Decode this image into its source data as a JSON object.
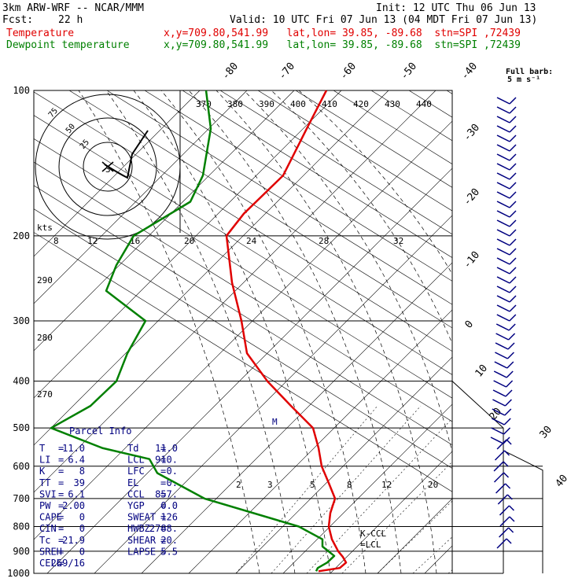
{
  "header": {
    "model": "3km ARW-WRF -- NCAR/MMM",
    "init": "Init: 12 UTC Thu 06 Jun 13",
    "fcst_label": "Fcst:",
    "fcst_value": "22 h",
    "valid": "Valid: 10 UTC Fri 07 Jun 13 (04 MDT Fri 07 Jun 13)",
    "temp_label": "Temperature",
    "temp_info": "x,y=709.80,541.99   lat,lon= 39.85, -89.68  stn=SPI ,72439",
    "dew_label": "Dewpoint temperature",
    "dew_info": "x,y=709.80,541.99   lat,lon= 39.85, -89.68  stn=SPI ,72439",
    "barb_title": "Full barb:",
    "barb_units": "5 m s⁻¹"
  },
  "chart_data": {
    "type": "line",
    "title": "Skew-T log-P sounding",
    "pressure_levels": [
      100,
      200,
      300,
      400,
      500,
      600,
      700,
      800,
      900,
      1000
    ],
    "temp_ticks_top": [
      -80,
      -70,
      -60,
      -50,
      -40
    ],
    "temp_ticks_right": [
      -30,
      -20,
      -10,
      0,
      10,
      20,
      30,
      40
    ],
    "theta_labels_top": [
      370,
      380,
      390,
      400,
      410,
      420,
      430,
      440
    ],
    "theta_labels_left": [
      290,
      280,
      270
    ],
    "mixing_ratio_labels": [
      2,
      3,
      5,
      8,
      12,
      20
    ],
    "hodo_speed_labels": [
      "kts",
      8,
      12,
      16,
      20,
      24,
      28,
      32
    ],
    "hodo_ring_labels": [
      75,
      50,
      25
    ],
    "hodo_center_label": "3",
    "marker_labels": {
      "kccl": "K-CCL",
      "lcl": "=LCL",
      "mid": "M"
    },
    "series": [
      {
        "name": "Temperature",
        "color": "#e00000",
        "p": [
          100,
          120,
          150,
          180,
          200,
          250,
          300,
          350,
          400,
          450,
          500,
          550,
          600,
          650,
          700,
          750,
          800,
          850,
          900,
          925,
          950,
          975,
          990
        ],
        "t_pix": [
          415,
          390,
          360,
          310,
          288,
          295,
          307,
          314,
          340,
          370,
          398,
          405,
          409,
          418,
          426,
          420,
          418,
          422,
          430,
          436,
          440,
          432,
          405
        ]
      },
      {
        "name": "Dewpoint temperature",
        "color": "#008000",
        "p": [
          100,
          120,
          150,
          170,
          200,
          230,
          260,
          300,
          350,
          400,
          450,
          500,
          550,
          580,
          620,
          700,
          800,
          850,
          880,
          920,
          950,
          975,
          990
        ],
        "t_pix": [
          262,
          268,
          258,
          242,
          170,
          148,
          135,
          185,
          162,
          148,
          115,
          65,
          130,
          190,
          200,
          260,
          380,
          410,
          410,
          425,
          416,
          404,
          402
        ]
      }
    ]
  },
  "parcel_info": {
    "title": "Parcel Info",
    "rows": [
      [
        "T",
        "=",
        "11.0",
        "Td",
        "=",
        "11.0"
      ],
      [
        "LI",
        "=",
        "6.4",
        "LCL",
        "=",
        "910."
      ],
      [
        "K",
        "=",
        "8",
        "LFC",
        "=",
        "0."
      ],
      [
        "TT",
        "=",
        "39",
        "EL",
        "=",
        "0."
      ],
      [
        "SVI",
        "=",
        "6.1",
        "CCL",
        "=",
        "857."
      ],
      [
        "PW",
        "=",
        "2.00",
        "YGP",
        "=",
        "0.0"
      ],
      [
        "CAPE",
        "=",
        "0",
        "SWEAT",
        "=",
        "126"
      ],
      [
        "CIN",
        "=",
        "0",
        "HWBZ",
        "=",
        "2788."
      ],
      [
        "Tc",
        "=",
        "21.9",
        "SHEAR",
        "=",
        "20."
      ],
      [
        "SREH",
        "=",
        "0",
        "LAPSE",
        "=",
        "5.5"
      ],
      [
        "CELL",
        "=",
        "269/16",
        "",
        "",
        ""
      ]
    ]
  },
  "colors": {
    "temperature": "#e00000",
    "dewpoint": "#008000",
    "parcel_text": "#000080",
    "barbs": "#000080"
  }
}
